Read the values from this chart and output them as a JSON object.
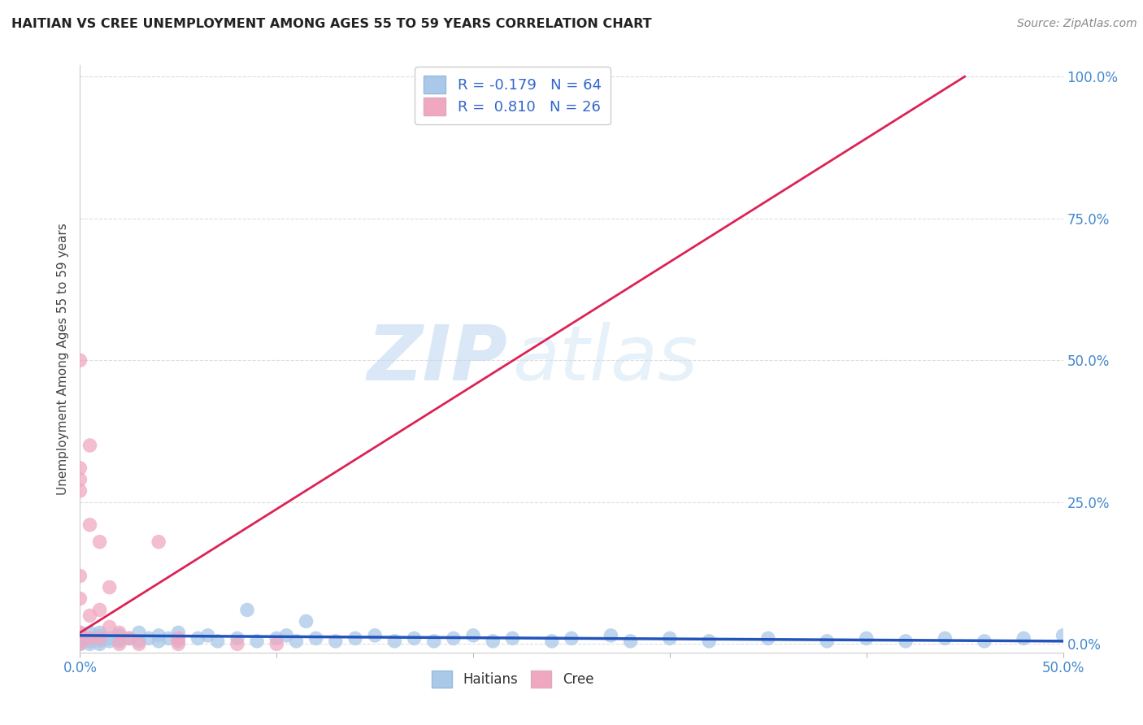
{
  "title": "HAITIAN VS CREE UNEMPLOYMENT AMONG AGES 55 TO 59 YEARS CORRELATION CHART",
  "source": "Source: ZipAtlas.com",
  "ylabel": "Unemployment Among Ages 55 to 59 years",
  "xlim": [
    0.0,
    0.5
  ],
  "ylim": [
    0.0,
    1.0
  ],
  "haitian_color": "#aac8e8",
  "cree_color": "#f0a8c0",
  "haitian_line_color": "#2255bb",
  "cree_line_color": "#dd2255",
  "legend_R_haitian": "-0.179",
  "legend_N_haitian": "64",
  "legend_R_cree": "0.810",
  "legend_N_cree": "26",
  "watermark_zip": "ZIP",
  "watermark_atlas": "atlas",
  "haitian_scatter_x": [
    0.0,
    0.0,
    0.0,
    0.0,
    0.0,
    0.0,
    0.005,
    0.005,
    0.005,
    0.005,
    0.01,
    0.01,
    0.01,
    0.01,
    0.01,
    0.015,
    0.015,
    0.02,
    0.02,
    0.02,
    0.025,
    0.03,
    0.03,
    0.035,
    0.04,
    0.04,
    0.045,
    0.05,
    0.05,
    0.06,
    0.065,
    0.07,
    0.08,
    0.085,
    0.09,
    0.1,
    0.105,
    0.11,
    0.115,
    0.12,
    0.13,
    0.14,
    0.15,
    0.16,
    0.17,
    0.18,
    0.19,
    0.2,
    0.21,
    0.22,
    0.24,
    0.25,
    0.27,
    0.28,
    0.3,
    0.32,
    0.35,
    0.38,
    0.4,
    0.42,
    0.44,
    0.46,
    0.48,
    0.5
  ],
  "haitian_scatter_y": [
    0.01,
    0.02,
    0.005,
    0.015,
    0.0,
    0.008,
    0.01,
    0.005,
    0.02,
    0.0,
    0.01,
    0.005,
    0.015,
    0.02,
    0.0,
    0.01,
    0.005,
    0.015,
    0.01,
    0.005,
    0.01,
    0.02,
    0.005,
    0.01,
    0.015,
    0.005,
    0.01,
    0.02,
    0.005,
    0.01,
    0.015,
    0.005,
    0.01,
    0.06,
    0.005,
    0.01,
    0.015,
    0.005,
    0.04,
    0.01,
    0.005,
    0.01,
    0.015,
    0.005,
    0.01,
    0.005,
    0.01,
    0.015,
    0.005,
    0.01,
    0.005,
    0.01,
    0.015,
    0.005,
    0.01,
    0.005,
    0.01,
    0.005,
    0.01,
    0.005,
    0.01,
    0.005,
    0.01,
    0.015
  ],
  "cree_scatter_x": [
    0.0,
    0.0,
    0.0,
    0.0,
    0.0,
    0.0,
    0.0,
    0.0,
    0.005,
    0.005,
    0.005,
    0.005,
    0.01,
    0.01,
    0.01,
    0.015,
    0.015,
    0.02,
    0.02,
    0.025,
    0.03,
    0.04,
    0.05,
    0.05,
    0.08,
    0.1
  ],
  "cree_scatter_y": [
    0.5,
    0.31,
    0.29,
    0.27,
    0.12,
    0.08,
    0.02,
    0.0,
    0.35,
    0.21,
    0.05,
    0.01,
    0.18,
    0.06,
    0.01,
    0.1,
    0.03,
    0.02,
    0.0,
    0.01,
    0.0,
    0.18,
    0.01,
    0.0,
    0.0,
    0.0
  ],
  "haitian_line_x": [
    0.0,
    0.5
  ],
  "haitian_line_y": [
    0.015,
    0.005
  ],
  "cree_line_x": [
    0.0,
    0.45
  ],
  "cree_line_y": [
    0.02,
    1.0
  ],
  "xtick_positions": [
    0.0,
    0.1,
    0.2,
    0.3,
    0.4,
    0.5
  ],
  "xtick_show_label": [
    true,
    false,
    false,
    false,
    false,
    true
  ],
  "ytick_values": [
    0.0,
    0.25,
    0.5,
    0.75,
    1.0
  ],
  "ytick_labels": [
    "0.0%",
    "25.0%",
    "50.0%",
    "75.0%",
    "100.0%"
  ]
}
